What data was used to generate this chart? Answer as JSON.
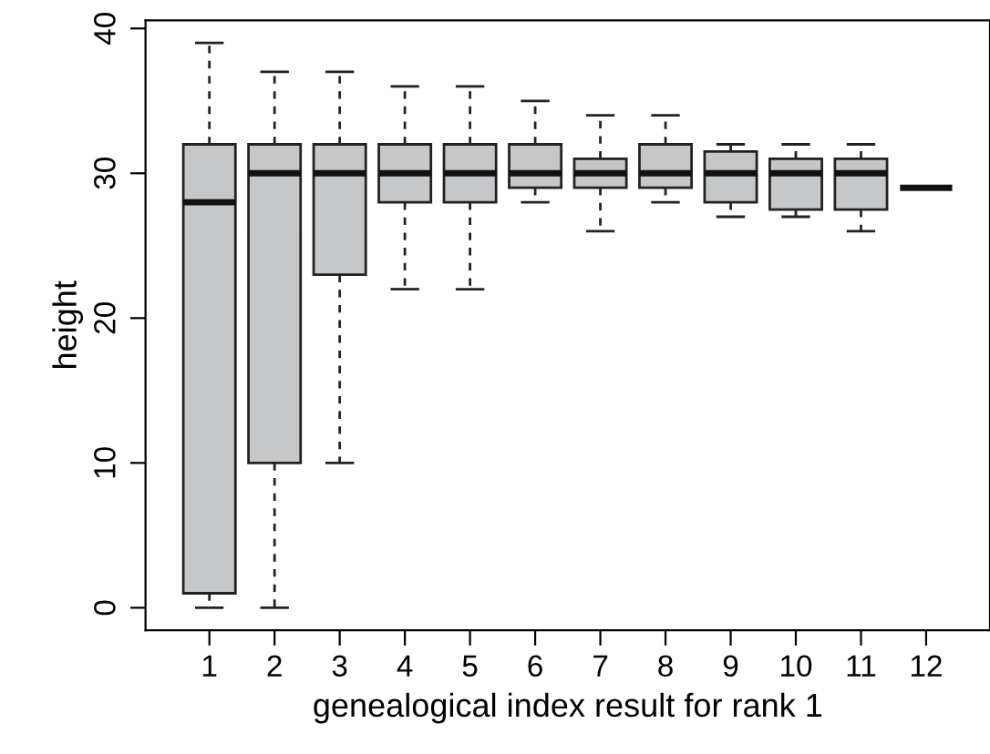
{
  "chart_data": {
    "type": "box",
    "xlabel": "genealogical index result for rank 1",
    "ylabel": "height",
    "categories": [
      "1",
      "2",
      "3",
      "4",
      "5",
      "6",
      "7",
      "8",
      "9",
      "10",
      "11",
      "12"
    ],
    "color": "#c6c7c9",
    "boxes": [
      {
        "low": 0,
        "q1": 1,
        "median": 28,
        "q3": 32,
        "high": 39
      },
      {
        "low": 0,
        "q1": 10,
        "median": 30,
        "q3": 32,
        "high": 37
      },
      {
        "low": 10,
        "q1": 23,
        "median": 30,
        "q3": 32,
        "high": 37
      },
      {
        "low": 22,
        "q1": 28,
        "median": 30,
        "q3": 32,
        "high": 36
      },
      {
        "low": 22,
        "q1": 28,
        "median": 30,
        "q3": 32,
        "high": 36
      },
      {
        "low": 28,
        "q1": 29,
        "median": 30,
        "q3": 32,
        "high": 35
      },
      {
        "low": 26,
        "q1": 29,
        "median": 30,
        "q3": 31,
        "high": 34
      },
      {
        "low": 28,
        "q1": 29,
        "median": 30,
        "q3": 32,
        "high": 34
      },
      {
        "low": 27,
        "q1": 28,
        "median": 30,
        "q3": 31.5,
        "high": 32
      },
      {
        "low": 27,
        "q1": 27.5,
        "median": 30,
        "q3": 31,
        "high": 32
      },
      {
        "low": 26,
        "q1": 27.5,
        "median": 30,
        "q3": 31,
        "high": 32
      },
      {
        "low": 29,
        "q1": 29,
        "median": 29,
        "q3": 29,
        "high": 29
      }
    ],
    "ylim": [
      -1.56,
      40.56
    ],
    "yticks": [
      0,
      10,
      20,
      30,
      40
    ],
    "grid": false,
    "legend": false
  }
}
